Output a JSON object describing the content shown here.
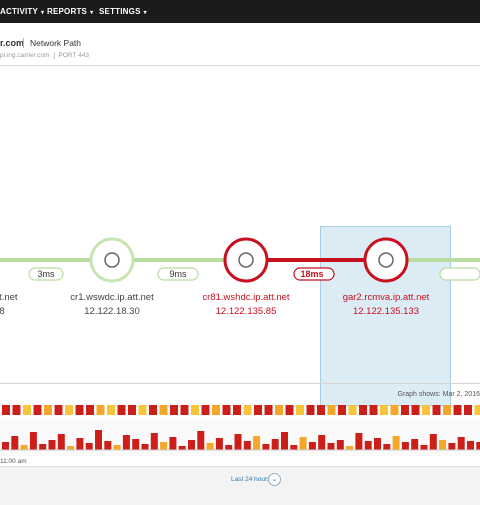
{
  "nav": {
    "items": [
      {
        "label": "ACTIVITY"
      },
      {
        "label": "REPORTS"
      },
      {
        "label": "SETTINGS"
      }
    ]
  },
  "header": {
    "host": "r.com",
    "title": "Network Path",
    "target_host": "pi.ing.carrier.com",
    "port_label": "PORT",
    "port_value": "443"
  },
  "path": {
    "hops": [
      {
        "name": "tt.net",
        "ip": "8",
        "status": "ok"
      },
      {
        "name": "cr1.wswdc.ip.att.net",
        "ip": "12.122.18.30",
        "status": "ok"
      },
      {
        "name": "cr81.wshdc.ip.att.net",
        "ip": "12.122.135.85",
        "status": "bad"
      },
      {
        "name": "gar2.rcmva.ip.att.net",
        "ip": "12.122.135.133",
        "status": "bad"
      }
    ],
    "latencies": [
      {
        "label": "3ms",
        "status": "ok"
      },
      {
        "label": "9ms",
        "status": "ok"
      },
      {
        "label": "18ms",
        "status": "bad"
      }
    ],
    "colors": {
      "ok": "#b9dca0",
      "bad": "#c8101e",
      "highlight": "#dcecf5"
    }
  },
  "graph": {
    "shows_label": "Graph shows: Mar 2, 2016",
    "time_label": "11:00 am",
    "range_label": "Last 24 hours",
    "toggle_icon": "chevron-down-icon",
    "colors": {
      "red": "#cc1f1a",
      "orange": "#f4a82a",
      "yellow": "#f8c53a"
    }
  }
}
